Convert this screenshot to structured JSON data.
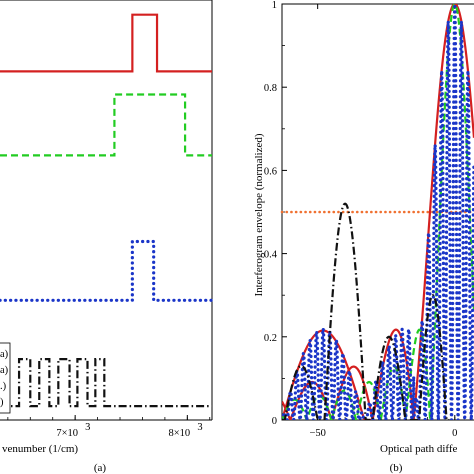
{
  "chart_data": [
    {
      "type": "line",
      "panel_label": "(a)",
      "xlabel": "venumber (1/cm)",
      "xtick_labels": [
        {
          "x": 7000,
          "label": "7×10",
          "exp": "3"
        },
        {
          "x": 8000,
          "label": "8×10",
          "exp": "3"
        }
      ],
      "xlim": [
        6330,
        8220
      ],
      "legend_entries": [
        "a)",
        "a)",
        ".)",
        ")"
      ],
      "legend_placement": "bottom-left",
      "series": [
        {
          "style": "solid",
          "color": "#d42020",
          "baseline_frac": 0.17,
          "high_frac": 0.035,
          "segments": [
            [
              7510,
              7730
            ]
          ]
        },
        {
          "style": "dashed",
          "color": "#22cc22",
          "baseline_frac": 0.37,
          "high_frac": 0.225,
          "segments": [
            [
              7350,
              7980
            ]
          ]
        },
        {
          "style": "dotted",
          "color": "#1a35c8",
          "baseline_frac": 0.715,
          "high_frac": 0.575,
          "segments": [
            [
              7510,
              7700
            ]
          ]
        },
        {
          "style": "dashdot",
          "color": "#111111",
          "baseline_frac": 0.967,
          "high_frac": 0.855,
          "segments": [
            [
              6500,
              6600
            ],
            [
              6680,
              6770
            ],
            [
              6850,
              6950
            ],
            [
              7020,
              7110
            ],
            [
              7180,
              7260
            ]
          ]
        }
      ]
    },
    {
      "type": "line",
      "panel_label": "(b)",
      "xlabel": "Optical path diffe",
      "ylabel": "Interferogram envelope (normalized)",
      "xlim": [
        -63,
        7
      ],
      "ylim": [
        0,
        1
      ],
      "xticks": [
        -50,
        0
      ],
      "xtick_labels": [
        "−50",
        "0"
      ],
      "yticks": [
        0,
        0.2,
        0.4,
        0.6,
        0.8,
        1
      ],
      "ytick_labels": [
        "0",
        "0.2",
        "0.4",
        "0.6",
        "0.8",
        "1"
      ],
      "hline": {
        "y": 0.5,
        "style": "dotted",
        "color": "#f07030"
      },
      "series": [
        {
          "style": "solid",
          "color": "#d42020",
          "kind": "envelope",
          "width": 15,
          "sidelobe_center": -48,
          "sidelobe_width": 15,
          "sidelobe_peak": 0.215
        },
        {
          "style": "dashed",
          "color": "#22cc22",
          "kind": "envelope",
          "width": 9
        },
        {
          "style": "dotted",
          "color": "#1a35c8",
          "kind": "fringes",
          "width": 15,
          "period": 2.4
        },
        {
          "style": "dashdot",
          "color": "#111111",
          "kind": "sidelobes",
          "peak_x": -40,
          "peak_y": 0.52
        }
      ]
    }
  ]
}
